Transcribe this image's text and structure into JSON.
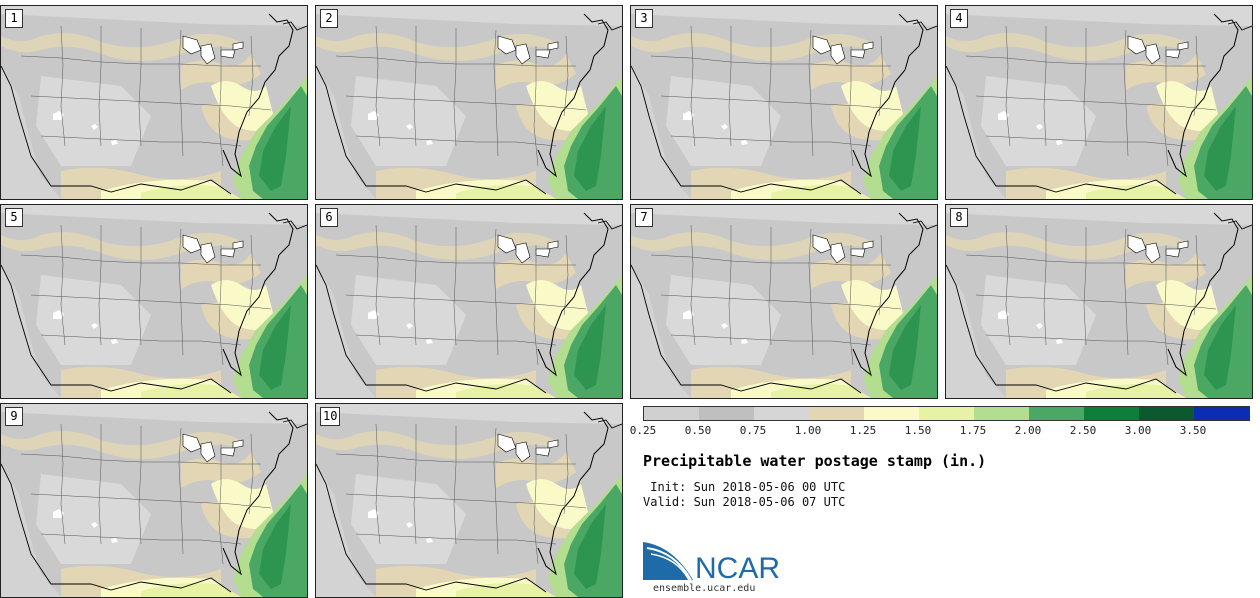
{
  "panels": [
    {
      "label": "1",
      "index": 1
    },
    {
      "label": "2",
      "index": 2
    },
    {
      "label": "3",
      "index": 3
    },
    {
      "label": "4",
      "index": 4
    },
    {
      "label": "5",
      "index": 5
    },
    {
      "label": "6",
      "index": 6
    },
    {
      "label": "7",
      "index": 7
    },
    {
      "label": "8",
      "index": 8
    },
    {
      "label": "9",
      "index": 9
    },
    {
      "label": "10",
      "index": 10
    }
  ],
  "colorbar": {
    "colors": [
      "#d0d0d0",
      "#bfbfbf",
      "#d6d6d6",
      "#e2d6b4",
      "#fafac9",
      "#e7f2a4",
      "#b3dd8f",
      "#4aa864",
      "#0d7f3a",
      "#0b5a2d",
      "#0a2db3"
    ],
    "ticks": [
      "0.25",
      "0.50",
      "0.75",
      "1.00",
      "1.25",
      "1.50",
      "1.75",
      "2.00",
      "2.50",
      "3.00",
      "3.50"
    ]
  },
  "title": "Precipitable water postage stamp (in.)",
  "init_text": " Init: Sun 2018-05-06 00 UTC",
  "valid_text": "Valid: Sun 2018-05-06 07 UTC",
  "logo_text": "NCAR",
  "site_text": "ensemble.ucar.edu",
  "colors": {
    "land_dark": "#c4c4c4",
    "land_light": "#d9d9d9",
    "tan": "#e2d6b4",
    "cream": "#fafac9",
    "green_light": "#b3dd8f",
    "green_mid": "#4aa864",
    "green_dark": "#0d7f3a",
    "logo_blue": "#1f6aa8"
  }
}
